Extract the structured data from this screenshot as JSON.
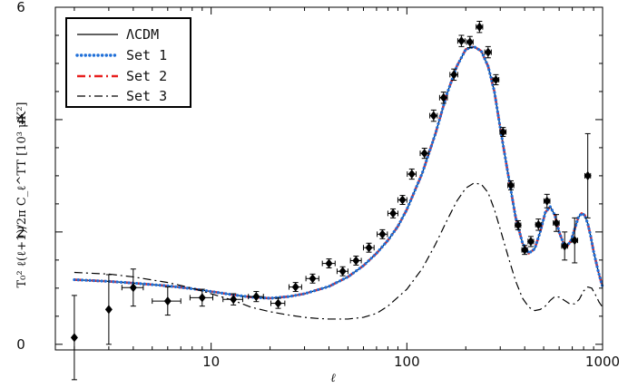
{
  "chart_data": {
    "type": "line",
    "x_scale": "log",
    "xlim": [
      1.6,
      1000
    ],
    "ylim": [
      -0.1,
      6.0
    ],
    "x_ticks": [
      10,
      100,
      1000
    ],
    "x_tick_labels": [
      "10",
      "100",
      "1000"
    ],
    "y_ticks": [
      0,
      2,
      4,
      6
    ],
    "y_tick_labels": [
      "0",
      "2",
      "4",
      "6"
    ],
    "xlabel": "ℓ",
    "ylabel": "T₀² ℓ(ℓ+1)/2π C_ℓ^TT  [10³ μK²]",
    "legend_position": "top-left",
    "series": [
      {
        "name": "ΛCDM",
        "color": "#000000",
        "style": "solid",
        "x": [
          2,
          3,
          4,
          6,
          8,
          10,
          13,
          16,
          20,
          25,
          30,
          40,
          50,
          60,
          70,
          80,
          90,
          100,
          120,
          140,
          160,
          180,
          200,
          220,
          240,
          260,
          280,
          300,
          330,
          360,
          390,
          420,
          450,
          480,
          510,
          540,
          570,
          600,
          630,
          660,
          690,
          720,
          750,
          780,
          810,
          840,
          870,
          900,
          950,
          1000
        ],
        "y": [
          1.15,
          1.12,
          1.09,
          1.04,
          0.99,
          0.94,
          0.88,
          0.84,
          0.82,
          0.85,
          0.9,
          1.03,
          1.2,
          1.4,
          1.62,
          1.85,
          2.1,
          2.4,
          3.05,
          3.75,
          4.45,
          4.95,
          5.25,
          5.3,
          5.22,
          4.95,
          4.5,
          3.85,
          3.0,
          2.25,
          1.8,
          1.62,
          1.7,
          2.0,
          2.35,
          2.45,
          2.3,
          2.0,
          1.8,
          1.75,
          1.85,
          2.05,
          2.25,
          2.33,
          2.3,
          2.15,
          1.92,
          1.65,
          1.3,
          1.02
        ]
      },
      {
        "name": "Set 1",
        "color": "#1f6fd8",
        "style": "dotted",
        "x": [
          2,
          3,
          4,
          6,
          8,
          10,
          13,
          16,
          20,
          25,
          30,
          40,
          50,
          60,
          70,
          80,
          90,
          100,
          120,
          140,
          160,
          180,
          200,
          220,
          240,
          260,
          280,
          300,
          330,
          360,
          390,
          420,
          450,
          480,
          510,
          540,
          570,
          600,
          630,
          660,
          690,
          720,
          750,
          780,
          810,
          840,
          870,
          900,
          950,
          1000
        ],
        "y": [
          1.15,
          1.12,
          1.09,
          1.04,
          0.99,
          0.94,
          0.88,
          0.84,
          0.82,
          0.85,
          0.9,
          1.03,
          1.2,
          1.4,
          1.62,
          1.85,
          2.1,
          2.4,
          3.05,
          3.75,
          4.45,
          4.95,
          5.25,
          5.3,
          5.22,
          4.95,
          4.5,
          3.85,
          3.0,
          2.25,
          1.8,
          1.62,
          1.7,
          2.0,
          2.35,
          2.45,
          2.3,
          2.0,
          1.8,
          1.75,
          1.85,
          2.05,
          2.25,
          2.33,
          2.3,
          2.15,
          1.92,
          1.65,
          1.3,
          1.02
        ]
      },
      {
        "name": "Set 2",
        "color": "#e8201f",
        "style": "dashdot",
        "x": [
          2,
          3,
          4,
          6,
          8,
          10,
          13,
          16,
          20,
          25,
          30,
          40,
          50,
          60,
          70,
          80,
          90,
          100,
          120,
          140,
          160,
          180,
          200,
          220,
          240,
          260,
          280,
          300,
          330,
          360,
          390,
          420,
          450,
          480,
          510,
          540,
          570,
          600,
          630,
          660,
          690,
          720,
          750,
          780,
          810,
          840,
          870,
          900,
          950,
          1000
        ],
        "y": [
          1.15,
          1.12,
          1.09,
          1.04,
          0.99,
          0.94,
          0.88,
          0.84,
          0.82,
          0.85,
          0.9,
          1.03,
          1.2,
          1.4,
          1.62,
          1.85,
          2.1,
          2.4,
          3.05,
          3.75,
          4.45,
          4.95,
          5.25,
          5.3,
          5.22,
          4.95,
          4.5,
          3.85,
          3.0,
          2.25,
          1.8,
          1.62,
          1.7,
          2.0,
          2.35,
          2.45,
          2.3,
          2.0,
          1.8,
          1.75,
          1.85,
          2.05,
          2.25,
          2.33,
          2.3,
          2.15,
          1.92,
          1.65,
          1.3,
          1.02
        ]
      },
      {
        "name": "Set 3",
        "color": "#000000",
        "style": "dashdot",
        "x": [
          2,
          3,
          4,
          6,
          8,
          10,
          13,
          16,
          20,
          25,
          30,
          35,
          40,
          50,
          60,
          70,
          80,
          100,
          120,
          140,
          160,
          180,
          200,
          220,
          240,
          260,
          280,
          300,
          330,
          360,
          390,
          420,
          450,
          480,
          510,
          540,
          570,
          600,
          640,
          680,
          720,
          760,
          800,
          840,
          880,
          920,
          960,
          1000
        ],
        "y": [
          1.28,
          1.25,
          1.2,
          1.1,
          1.0,
          0.9,
          0.78,
          0.66,
          0.58,
          0.52,
          0.48,
          0.46,
          0.45,
          0.45,
          0.48,
          0.55,
          0.68,
          0.98,
          1.35,
          1.78,
          2.2,
          2.55,
          2.78,
          2.87,
          2.85,
          2.7,
          2.4,
          2.05,
          1.55,
          1.12,
          0.82,
          0.66,
          0.6,
          0.62,
          0.68,
          0.78,
          0.85,
          0.84,
          0.78,
          0.72,
          0.72,
          0.8,
          0.95,
          1.02,
          1.0,
          0.88,
          0.75,
          0.66
        ]
      }
    ],
    "data_points": {
      "name": "observations",
      "marker": "diamond",
      "color": "#000000",
      "points": [
        {
          "x": 2,
          "y": 0.12,
          "yerr": 0.75,
          "xerr": 0
        },
        {
          "x": 3,
          "y": 0.62,
          "yerr": 0.62,
          "xerr": 0
        },
        {
          "x": 4,
          "y": 1.01,
          "yerr": 0.33,
          "xerr": 0.5
        },
        {
          "x": 6,
          "y": 0.77,
          "yerr": 0.25,
          "xerr": 1
        },
        {
          "x": 9,
          "y": 0.83,
          "yerr": 0.15,
          "xerr": 1.2
        },
        {
          "x": 13,
          "y": 0.8,
          "yerr": 0.1,
          "xerr": 1.5
        },
        {
          "x": 17,
          "y": 0.85,
          "yerr": 0.09,
          "xerr": 1.5
        },
        {
          "x": 22,
          "y": 0.73,
          "yerr": 0.09,
          "xerr": 1.8
        },
        {
          "x": 27,
          "y": 1.02,
          "yerr": 0.08,
          "xerr": 2
        },
        {
          "x": 33,
          "y": 1.17,
          "yerr": 0.08,
          "xerr": 2.5
        },
        {
          "x": 40,
          "y": 1.44,
          "yerr": 0.08,
          "xerr": 3
        },
        {
          "x": 47,
          "y": 1.3,
          "yerr": 0.08,
          "xerr": 3
        },
        {
          "x": 55,
          "y": 1.49,
          "yerr": 0.08,
          "xerr": 3.5
        },
        {
          "x": 64,
          "y": 1.72,
          "yerr": 0.08,
          "xerr": 4
        },
        {
          "x": 75,
          "y": 1.96,
          "yerr": 0.08,
          "xerr": 4.5
        },
        {
          "x": 85,
          "y": 2.33,
          "yerr": 0.08,
          "xerr": 5
        },
        {
          "x": 95,
          "y": 2.57,
          "yerr": 0.08,
          "xerr": 5
        },
        {
          "x": 106,
          "y": 3.03,
          "yerr": 0.09,
          "xerr": 5.5
        },
        {
          "x": 123,
          "y": 3.4,
          "yerr": 0.09,
          "xerr": 6
        },
        {
          "x": 137,
          "y": 4.07,
          "yerr": 0.1,
          "xerr": 6
        },
        {
          "x": 154,
          "y": 4.39,
          "yerr": 0.1,
          "xerr": 7
        },
        {
          "x": 174,
          "y": 4.8,
          "yerr": 0.1,
          "xerr": 8
        },
        {
          "x": 190,
          "y": 5.4,
          "yerr": 0.1,
          "xerr": 8
        },
        {
          "x": 210,
          "y": 5.38,
          "yerr": 0.1,
          "xerr": 8
        },
        {
          "x": 235,
          "y": 5.65,
          "yerr": 0.1,
          "xerr": 9
        },
        {
          "x": 260,
          "y": 5.2,
          "yerr": 0.1,
          "xerr": 10
        },
        {
          "x": 285,
          "y": 4.71,
          "yerr": 0.09,
          "xerr": 10
        },
        {
          "x": 310,
          "y": 3.78,
          "yerr": 0.08,
          "xerr": 11
        },
        {
          "x": 340,
          "y": 2.83,
          "yerr": 0.08,
          "xerr": 12
        },
        {
          "x": 370,
          "y": 2.12,
          "yerr": 0.08,
          "xerr": 12
        },
        {
          "x": 400,
          "y": 1.68,
          "yerr": 0.08,
          "xerr": 13
        },
        {
          "x": 430,
          "y": 1.83,
          "yerr": 0.09,
          "xerr": 14
        },
        {
          "x": 470,
          "y": 2.13,
          "yerr": 0.1,
          "xerr": 15
        },
        {
          "x": 520,
          "y": 2.55,
          "yerr": 0.12,
          "xerr": 18
        },
        {
          "x": 580,
          "y": 2.16,
          "yerr": 0.15,
          "xerr": 20
        },
        {
          "x": 640,
          "y": 1.75,
          "yerr": 0.25,
          "xerr": 22
        },
        {
          "x": 720,
          "y": 1.85,
          "yerr": 0.4,
          "xerr": 25
        },
        {
          "x": 840,
          "y": 3.0,
          "yerr": 0.75,
          "xerr": 28
        }
      ]
    }
  }
}
